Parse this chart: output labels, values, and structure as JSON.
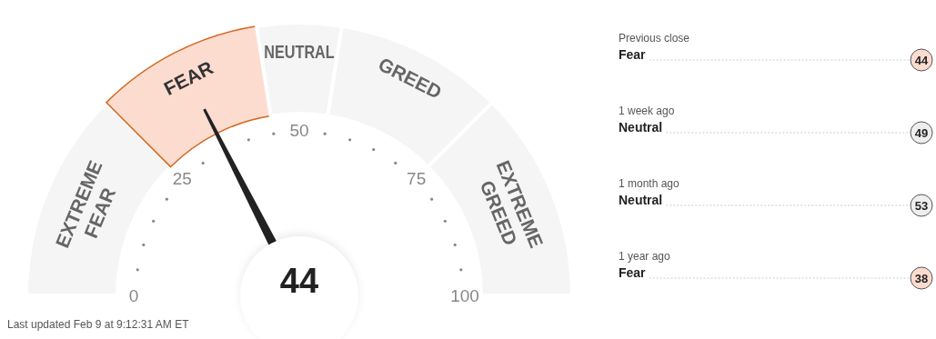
{
  "chart_data": [
    {
      "type": "donut",
      "categories": [
        "EXTREME FEAR",
        "FEAR",
        "NEUTRAL",
        "GREED",
        "EXTREME GREED"
      ],
      "values": [
        25,
        20,
        10,
        20,
        25
      ],
      "colors": [
        "#f5f5f5",
        "#fddcd0",
        "#f5f5f5",
        "#f5f5f5",
        "#f5f5f5"
      ],
      "needle": "FEAR",
      "annotations": [
        "0",
        "25",
        "50",
        "75",
        "100",
        "44",
        "Last updated Feb 9 at 9:12:31 AM ET"
      ]
    },
    {
      "type": "other",
      "categories": [
        "Previous close",
        "1 week ago",
        "1 month ago",
        "1 year ago"
      ],
      "values": [
        44,
        49,
        53,
        38
      ],
      "colors": [
        "#fddcd0",
        "#eeeeee",
        "#eeeeee",
        "#fddcd0"
      ],
      "data_labels": true,
      "annotations": [
        "Fear",
        "Neutral",
        "Neutral",
        "Fear"
      ]
    }
  ]
}
